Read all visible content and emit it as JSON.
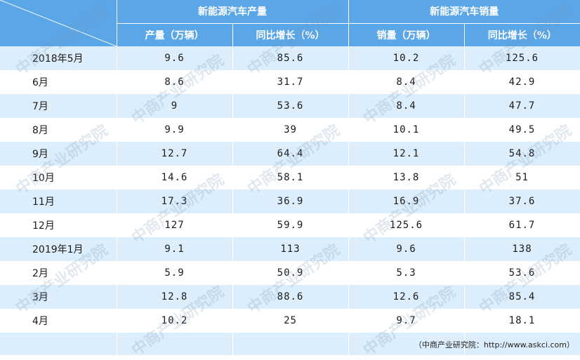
{
  "chart_data": {
    "type": "table",
    "group_headers": [
      "新能源汽车产量",
      "新能源汽车销量"
    ],
    "column_headers": [
      "产量（万辆）",
      "同比增长（%）",
      "销量（万辆）",
      "同比增长（%）"
    ],
    "rows": [
      {
        "month": "2018年5月",
        "production": "9.6",
        "prod_growth": "85.6",
        "sales": "10.2",
        "sales_growth": "125.6"
      },
      {
        "month": "6月",
        "production": "8.6",
        "prod_growth": "31.7",
        "sales": "8.4",
        "sales_growth": "42.9"
      },
      {
        "month": "7月",
        "production": "9",
        "prod_growth": "53.6",
        "sales": "8.4",
        "sales_growth": "47.7"
      },
      {
        "month": "8月",
        "production": "9.9",
        "prod_growth": "39",
        "sales": "10.1",
        "sales_growth": "49.5"
      },
      {
        "month": "9月",
        "production": "12.7",
        "prod_growth": "64.4",
        "sales": "12.1",
        "sales_growth": "54.8"
      },
      {
        "month": "10月",
        "production": "14.6",
        "prod_growth": "58.1",
        "sales": "13.8",
        "sales_growth": "51"
      },
      {
        "month": "11月",
        "production": "17.3",
        "prod_growth": "36.9",
        "sales": "16.9",
        "sales_growth": "37.6"
      },
      {
        "month": "12月",
        "production": "127",
        "prod_growth": "59.9",
        "sales": "125.6",
        "sales_growth": "61.7"
      },
      {
        "month": "2019年1月",
        "production": "9.1",
        "prod_growth": "113",
        "sales": "9.6",
        "sales_growth": "138"
      },
      {
        "month": "2月",
        "production": "5.9",
        "prod_growth": "50.9",
        "sales": "5.3",
        "sales_growth": "53.6"
      },
      {
        "month": "3月",
        "production": "12.8",
        "prod_growth": "88.6",
        "sales": "12.6",
        "sales_growth": "85.4"
      },
      {
        "month": "4月",
        "production": "10.2",
        "prod_growth": "25",
        "sales": "9.7",
        "sales_growth": "18.1"
      }
    ]
  },
  "source": "（中商产业研究院：http://www.askci.com）",
  "watermark": "中商产业研究院",
  "colors": {
    "header_bg": "#5aa6e6",
    "row_shade": "#dceefb",
    "row_plain": "#ffffff"
  }
}
